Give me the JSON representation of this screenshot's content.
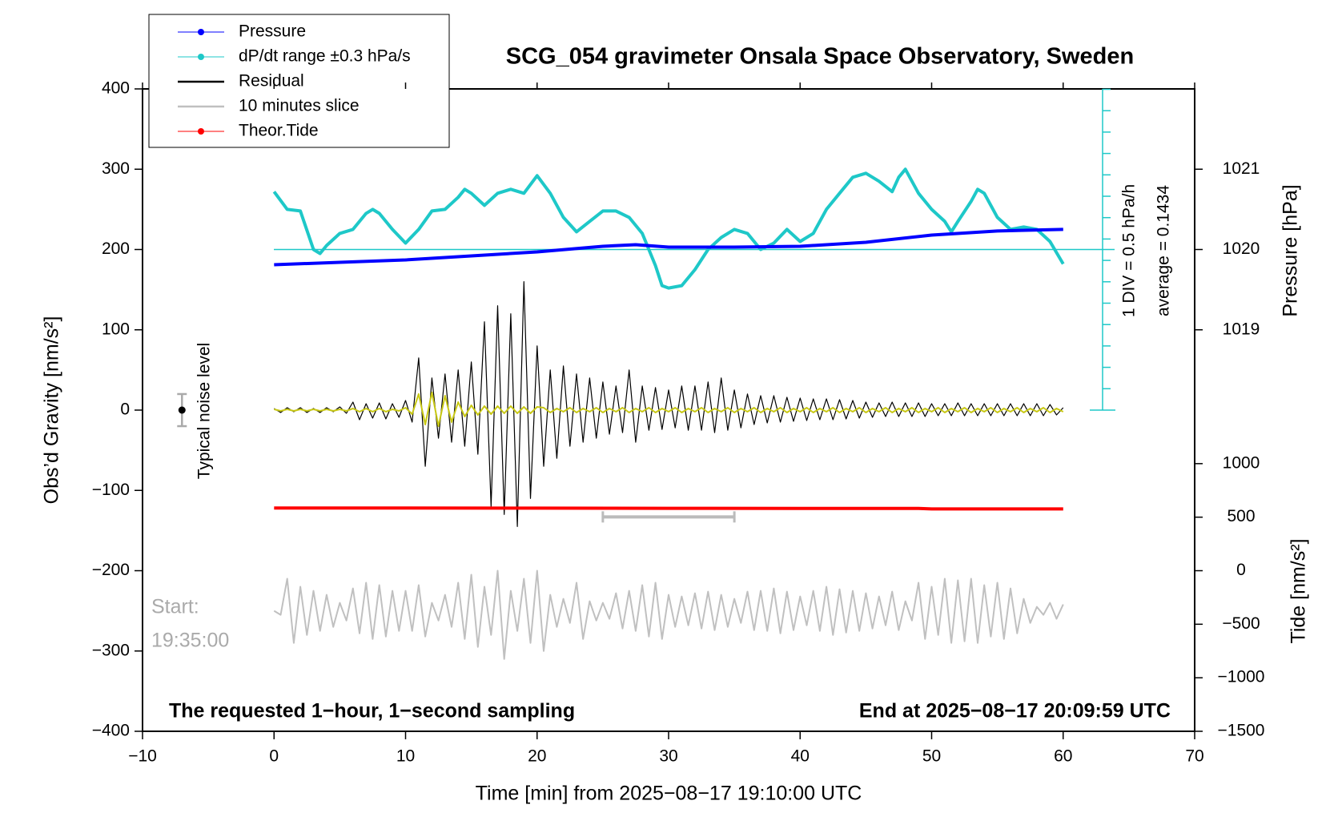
{
  "chart_data": {
    "type": "line",
    "title": "SCG_054 gravimeter Onsala Space Observatory, Sweden",
    "xlabel": "Time [min] from 2025−08−17 19:10:00 UTC",
    "ylabel": "Obs’d Gravity [nm/s²]",
    "y2label": "Pressure [hPa]",
    "y3label": "Tide [nm/s²]",
    "annotations": {
      "start": "Start:",
      "start_time": "19:35:00",
      "sampling": "The requested 1−hour, 1−second sampling",
      "end": "End at 2025−08−17 20:09:59 UTC",
      "div": "1 DIV = 0.5 hPa/h",
      "average": "average = 0.1434",
      "noise": "Typical noise level"
    },
    "xlim": [
      -10,
      70
    ],
    "xticks": [
      {
        "value": -10,
        "label": "−10"
      },
      0,
      10,
      20,
      30,
      40,
      50,
      60,
      70
    ],
    "ylim": [
      -400,
      400
    ],
    "yticks": [
      {
        "value": -400,
        "label": "−400"
      },
      {
        "value": -300,
        "label": "−300"
      },
      {
        "value": -200,
        "label": "−200"
      },
      {
        "value": -100,
        "label": "−100"
      },
      0,
      100,
      200,
      300,
      400
    ],
    "y2lim": [
      1014,
      1022
    ],
    "y2ticks": [
      1019,
      1020,
      1021
    ],
    "y3lim": [
      -1500,
      4500
    ],
    "y3ticks": [
      {
        "value": -1500,
        "label": "−1500"
      },
      {
        "value": -1000,
        "label": "−1000"
      },
      {
        "value": -500,
        "label": "−500"
      },
      0,
      500,
      1000
    ],
    "x": [
      0,
      0.5,
      1,
      1.5,
      2,
      2.5,
      3,
      3.5,
      4,
      4.5,
      5,
      5.5,
      6,
      6.5,
      7,
      7.5,
      8,
      8.5,
      9,
      9.5,
      10,
      10.5,
      11,
      11.5,
      12,
      12.5,
      13,
      13.5,
      14,
      14.5,
      15,
      15.5,
      16,
      16.5,
      17,
      17.5,
      18,
      18.5,
      19,
      19.5,
      20,
      20.5,
      21,
      21.5,
      22,
      22.5,
      23,
      23.5,
      24,
      24.5,
      25,
      25.5,
      26,
      26.5,
      27,
      27.5,
      28,
      28.5,
      29,
      29.5,
      30,
      30.5,
      31,
      31.5,
      32,
      32.5,
      33,
      33.5,
      34,
      34.5,
      35,
      35.5,
      36,
      36.5,
      37,
      37.5,
      38,
      38.5,
      39,
      39.5,
      40,
      40.5,
      41,
      41.5,
      42,
      42.5,
      43,
      43.5,
      44,
      44.5,
      45,
      45.5,
      46,
      46.5,
      47,
      47.5,
      48,
      48.5,
      49,
      49.5,
      50,
      50.5,
      51,
      51.5,
      52,
      52.5,
      53,
      53.5,
      54,
      54.5,
      55,
      55.5,
      56,
      56.5,
      57,
      57.5,
      58,
      58.5,
      59,
      59.5,
      60
    ],
    "series": [
      {
        "name": "Pressure",
        "color": "#0000ff",
        "axis": "y2",
        "legend_marker": true,
        "x": [
          0,
          5,
          10,
          15,
          20,
          25,
          27.5,
          30,
          35,
          40,
          45,
          50,
          55,
          60
        ],
        "values": [
          1019.81,
          1019.84,
          1019.87,
          1019.92,
          1019.97,
          1020.04,
          1020.06,
          1020.03,
          1020.03,
          1020.04,
          1020.09,
          1020.18,
          1020.23,
          1020.25
        ]
      },
      {
        "name": "dP/dt range ±0.3 hPa/s",
        "color": "#1ec8c8",
        "legend_marker": true,
        "x": [
          0,
          1,
          2,
          3,
          3.5,
          4,
          5,
          6,
          7,
          7.5,
          8,
          9,
          10,
          11,
          12,
          13,
          14,
          14.5,
          15,
          16,
          17,
          18,
          19,
          20,
          21,
          22,
          23,
          24,
          25,
          26,
          27,
          28,
          29,
          29.5,
          30,
          31,
          32,
          33,
          34,
          35,
          36,
          37,
          38,
          39,
          40,
          41,
          42,
          43,
          44,
          45,
          46,
          47,
          47.5,
          48,
          49,
          50,
          51,
          51.5,
          52,
          53,
          53.5,
          54,
          55,
          56,
          57,
          58,
          59,
          60
        ],
        "values": [
          272,
          250,
          248,
          200,
          195,
          205,
          220,
          225,
          245,
          250,
          245,
          225,
          208,
          225,
          248,
          250,
          265,
          275,
          270,
          255,
          270,
          275,
          270,
          292,
          270,
          240,
          222,
          235,
          248,
          248,
          240,
          220,
          180,
          155,
          152,
          155,
          175,
          200,
          215,
          225,
          220,
          200,
          208,
          225,
          210,
          220,
          250,
          270,
          290,
          295,
          285,
          272,
          290,
          300,
          270,
          250,
          235,
          222,
          235,
          260,
          275,
          270,
          240,
          225,
          228,
          225,
          210,
          182
        ]
      },
      {
        "name": "Residual",
        "color": "#000000",
        "values": [
          2,
          -3,
          3,
          -2,
          3,
          -3,
          2,
          -3,
          3,
          -2,
          4,
          -4,
          10,
          -12,
          8,
          -10,
          9,
          -11,
          8,
          -9,
          12,
          -15,
          65,
          -70,
          40,
          -35,
          45,
          -40,
          50,
          -45,
          60,
          -55,
          110,
          -120,
          130,
          -130,
          120,
          -145,
          160,
          -110,
          80,
          -70,
          50,
          -60,
          55,
          -45,
          45,
          -40,
          40,
          -35,
          35,
          -30,
          30,
          -28,
          50,
          -40,
          30,
          -25,
          28,
          -24,
          25,
          -22,
          30,
          -25,
          30,
          -25,
          35,
          -28,
          40,
          -25,
          25,
          -22,
          20,
          -18,
          18,
          -16,
          18,
          -15,
          16,
          -14,
          15,
          -13,
          14,
          -12,
          14,
          -12,
          13,
          -11,
          12,
          -10,
          10,
          -9,
          9,
          -8,
          10,
          -8,
          9,
          -8,
          9,
          -8,
          8,
          -7,
          8,
          -7,
          9,
          -7,
          8,
          -7,
          8,
          -7,
          8,
          -7,
          8,
          -7,
          8,
          -7,
          8,
          -7,
          7,
          -6,
          3
        ]
      },
      {
        "name": "10 minutes slice",
        "color": "#c0c0c0",
        "values": [
          -250,
          -255,
          -210,
          -290,
          -220,
          -280,
          -225,
          -275,
          -230,
          -270,
          -240,
          -262,
          -222,
          -278,
          -215,
          -285,
          -218,
          -282,
          -225,
          -275,
          -225,
          -275,
          -218,
          -282,
          -240,
          -262,
          -230,
          -270,
          -215,
          -285,
          -205,
          -295,
          -220,
          -280,
          -200,
          -310,
          -225,
          -275,
          -210,
          -290,
          -200,
          -300,
          -230,
          -270,
          -235,
          -265,
          -215,
          -285,
          -238,
          -262,
          -240,
          -260,
          -228,
          -272,
          -225,
          -275,
          -218,
          -282,
          -215,
          -285,
          -230,
          -270,
          -232,
          -268,
          -228,
          -272,
          -226,
          -274,
          -230,
          -270,
          -235,
          -265,
          -226,
          -274,
          -225,
          -275,
          -222,
          -278,
          -226,
          -274,
          -232,
          -268,
          -225,
          -275,
          -220,
          -280,
          -223,
          -277,
          -225,
          -275,
          -228,
          -272,
          -232,
          -268,
          -226,
          -274,
          -238,
          -262,
          -215,
          -285,
          -220,
          -280,
          -210,
          -290,
          -212,
          -288,
          -210,
          -290,
          -218,
          -282,
          -215,
          -285,
          -222,
          -278,
          -235,
          -265,
          -245,
          -255,
          -240,
          -260,
          -242
        ]
      },
      {
        "name": "Theor.Tide",
        "color": "#ff0000",
        "axis": "y3",
        "legend_marker": true,
        "x": [
          0,
          10,
          20,
          30,
          40,
          49,
          50,
          60
        ],
        "values": [
          585,
          585,
          584,
          583,
          582,
          581,
          577,
          577
        ]
      },
      {
        "color": "#c8c814",
        "values": [
          1,
          -1,
          1,
          -1,
          1,
          -1,
          1,
          -1,
          1,
          -1,
          1,
          -1,
          2,
          -2,
          2,
          -2,
          2,
          -2,
          1,
          -1,
          3,
          -5,
          20,
          -18,
          22,
          -20,
          18,
          -15,
          10,
          -8,
          6,
          -6,
          5,
          -5,
          5,
          -4,
          5,
          -4,
          4,
          -4,
          4,
          3,
          -3,
          2,
          -2,
          3,
          -3,
          2,
          -2,
          3,
          -3,
          2,
          -2,
          3,
          -3,
          2,
          -2,
          3,
          -3,
          2,
          -2,
          3,
          -3,
          2,
          -2,
          3,
          -3,
          2,
          -2,
          3,
          -3,
          2,
          -2,
          3,
          -3,
          2,
          -2,
          3,
          -3,
          2,
          -2,
          3,
          -3,
          2,
          -2,
          3,
          -3,
          2,
          -2,
          3,
          -3,
          2,
          -2,
          3,
          -3,
          2,
          -2,
          3,
          -3,
          2,
          -2,
          3,
          -3,
          2,
          -2,
          3,
          -3,
          2,
          -2,
          3,
          -3,
          2,
          -2,
          3,
          -3,
          2,
          -2,
          3,
          -3,
          2,
          -2
        ]
      }
    ],
    "slice_window": {
      "x": [
        25,
        35
      ],
      "y": -133
    },
    "noise_level": {
      "x": -7,
      "value": 0,
      "error": 20
    }
  }
}
